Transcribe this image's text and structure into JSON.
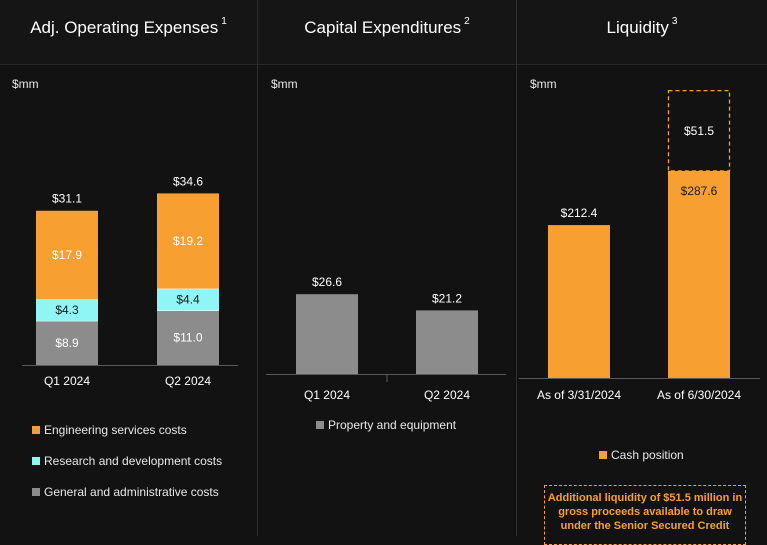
{
  "panels": [
    {
      "title": "Adj. Operating Expenses",
      "footnote": "1",
      "unit": "$mm"
    },
    {
      "title": "Capital Expenditures",
      "footnote": "2",
      "unit": "$mm"
    },
    {
      "title": "Liquidity",
      "footnote": "3",
      "unit": "$mm"
    }
  ],
  "colors": {
    "engineering": "#f7a031",
    "research": "#8ff5f5",
    "admin": "#8c8c8c",
    "property": "#8c8c8c",
    "cash": "#f7a031",
    "additional": "#f7a031"
  },
  "chart_data": [
    {
      "type": "bar",
      "stacked": true,
      "title": "Adj. Operating Expenses",
      "ylabel": "$mm",
      "categories": [
        "Q1 2024",
        "Q2 2024"
      ],
      "series": [
        {
          "name": "General and administrative costs",
          "values": [
            8.9,
            11.0
          ],
          "labels": [
            "$8.9",
            "$11.0"
          ]
        },
        {
          "name": "Research and development costs",
          "values": [
            4.3,
            4.4
          ],
          "labels": [
            "$4.3",
            "$4.4"
          ]
        },
        {
          "name": "Engineering services costs",
          "values": [
            17.9,
            19.2
          ],
          "labels": [
            "$17.9",
            "$19.2"
          ]
        }
      ],
      "totals": [
        31.1,
        34.6
      ],
      "total_labels": [
        "$31.1",
        "$34.6"
      ],
      "legend": [
        "Engineering services costs",
        "Research and development costs",
        "General and administrative costs"
      ],
      "legend_placement": "bottom"
    },
    {
      "type": "bar",
      "title": "Capital Expenditures",
      "ylabel": "$mm",
      "categories": [
        "Q1 2024",
        "Q2 2024"
      ],
      "series": [
        {
          "name": "Property and equipment",
          "values": [
            26.6,
            21.2
          ],
          "labels": [
            "$26.6",
            "$21.2"
          ]
        }
      ],
      "legend": [
        "Property and equipment"
      ],
      "legend_placement": "bottom"
    },
    {
      "type": "bar",
      "title": "Liquidity",
      "ylabel": "$mm",
      "categories": [
        "As of 3/31/2024",
        "As of 6/30/2024"
      ],
      "series": [
        {
          "name": "Cash position",
          "values": [
            212.4,
            287.6
          ],
          "labels": [
            "$212.4",
            "$287.6"
          ]
        },
        {
          "values": [
            0,
            51.5
          ],
          "labels": [
            "",
            "$51.5"
          ],
          "style": "dashed"
        }
      ],
      "legend": [
        "Cash position"
      ],
      "legend_placement": "bottom",
      "note": "Additional liquidity of $51.5 million in gross proceeds available to draw under the Senior Secured Credit"
    }
  ]
}
